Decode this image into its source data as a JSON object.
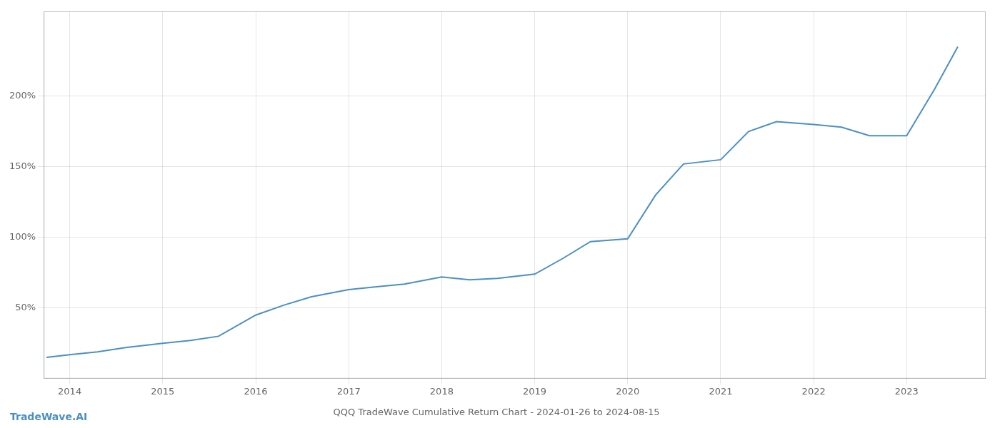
{
  "chart_data": {
    "type": "line",
    "title": "QQQ TradeWave Cumulative Return Chart - 2024-01-26 to 2024-08-15",
    "annotations": [
      "TradeWave.AI"
    ],
    "x": [
      2013.75,
      2014.0,
      2014.3,
      2014.6,
      2015.0,
      2015.3,
      2015.6,
      2016.0,
      2016.3,
      2016.6,
      2017.0,
      2017.3,
      2017.6,
      2018.0,
      2018.3,
      2018.6,
      2019.0,
      2019.3,
      2019.6,
      2020.0,
      2020.3,
      2020.6,
      2021.0,
      2021.3,
      2021.6,
      2022.0,
      2022.3,
      2022.6,
      2023.0,
      2023.3,
      2023.55
    ],
    "values": [
      15,
      17,
      19,
      22,
      25,
      27,
      30,
      45,
      52,
      58,
      63,
      65,
      67,
      72,
      70,
      71,
      74,
      85,
      97,
      99,
      130,
      152,
      155,
      175,
      182,
      180,
      178,
      172,
      172,
      205,
      235
    ],
    "color": "#4a90c4",
    "xlim": [
      2013.72,
      2023.85
    ],
    "xticks": [
      2014,
      2015,
      2016,
      2017,
      2018,
      2019,
      2020,
      2021,
      2022,
      2023
    ],
    "ylim": [
      0,
      260
    ],
    "yticks": [
      {
        "value": 50,
        "label": "50%"
      },
      {
        "value": 100,
        "label": "100%"
      },
      {
        "value": 150,
        "label": "150%"
      },
      {
        "value": 200,
        "label": "200%"
      }
    ],
    "grid": true
  }
}
